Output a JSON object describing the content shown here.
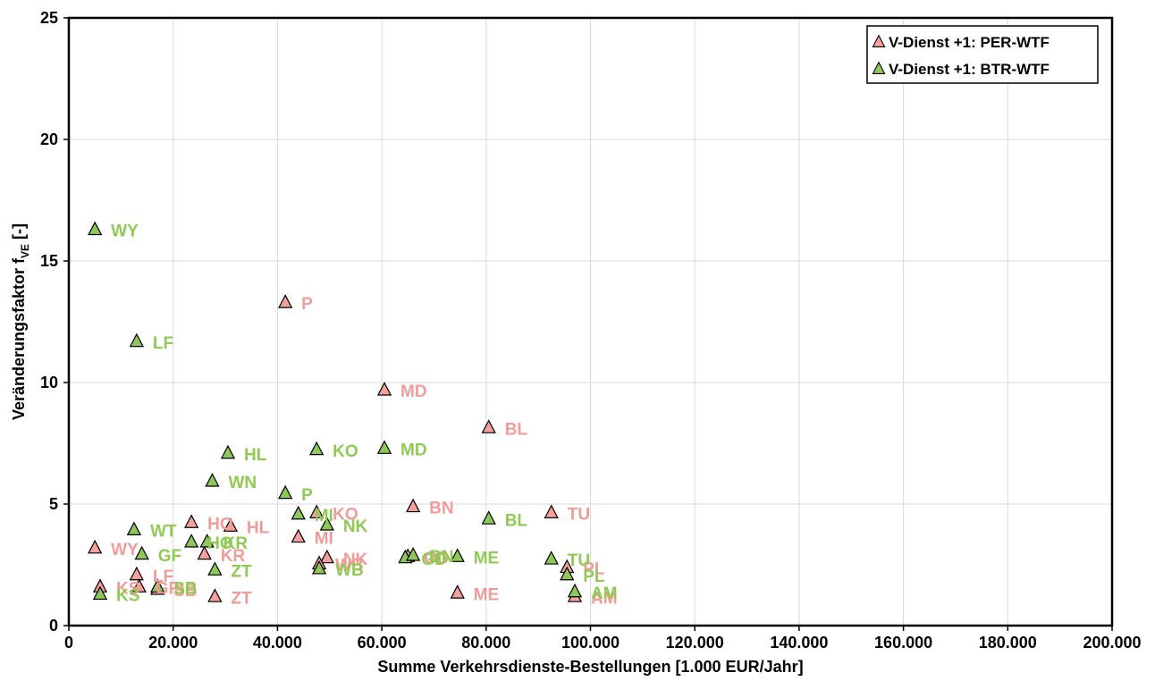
{
  "chart_data": {
    "type": "scatter",
    "xlabel": "Summe Verkehrsdienste-Bestellungen [1.000 EUR/Jahr]",
    "ylabel_main": "Veränderungsfaktor f",
    "ylabel_sub": "VE",
    "ylabel_tail": " [-]",
    "xlim": [
      0,
      200000
    ],
    "ylim": [
      0,
      25
    ],
    "x_ticks": [
      "0",
      "20.000",
      "40.000",
      "60.000",
      "80.000",
      "100.000",
      "120.000",
      "140.000",
      "160.000",
      "180.000",
      "200.000"
    ],
    "y_ticks": [
      "0",
      "5",
      "10",
      "15",
      "20",
      "25"
    ],
    "grid": true,
    "legend_position": "top-right",
    "series": [
      {
        "name": "V-Dienst +1: PER-WTF",
        "color": "#f4a09c",
        "label_color": "#f09c99",
        "points": [
          {
            "label": "WY",
            "x": 5000,
            "y": 3.2
          },
          {
            "label": "KS",
            "x": 6000,
            "y": 1.6
          },
          {
            "label": "LF",
            "x": 13000,
            "y": 2.1
          },
          {
            "label": "GF",
            "x": 13500,
            "y": 1.6
          },
          {
            "label": "SB",
            "x": 17000,
            "y": 1.5
          },
          {
            "label": "HO",
            "x": 23500,
            "y": 4.25
          },
          {
            "label": "KR",
            "x": 26000,
            "y": 2.95
          },
          {
            "label": "HL",
            "x": 31000,
            "y": 4.1
          },
          {
            "label": "ZT",
            "x": 28000,
            "y": 1.2
          },
          {
            "label": "P",
            "x": 41500,
            "y": 13.3
          },
          {
            "label": "MI",
            "x": 44000,
            "y": 3.65
          },
          {
            "label": "KO",
            "x": 47500,
            "y": 4.65
          },
          {
            "label": "NK",
            "x": 49500,
            "y": 2.8
          },
          {
            "label": "WB",
            "x": 48000,
            "y": 2.55
          },
          {
            "label": "MD",
            "x": 60500,
            "y": 9.7
          },
          {
            "label": "BN",
            "x": 66000,
            "y": 4.9
          },
          {
            "label": "GD",
            "x": 65000,
            "y": 2.85
          },
          {
            "label": "ME",
            "x": 74500,
            "y": 1.35
          },
          {
            "label": "BL",
            "x": 80500,
            "y": 8.15
          },
          {
            "label": "TU",
            "x": 92500,
            "y": 4.65
          },
          {
            "label": "PL",
            "x": 95500,
            "y": 2.4
          },
          {
            "label": "AM",
            "x": 97000,
            "y": 1.2
          }
        ]
      },
      {
        "name": "V-Dienst +1: BTR-WTF",
        "color": "#8fc75a",
        "label_color": "#8fca55",
        "points": [
          {
            "label": "WY",
            "x": 5000,
            "y": 16.3
          },
          {
            "label": "KS",
            "x": 6000,
            "y": 1.3
          },
          {
            "label": "LF",
            "x": 13000,
            "y": 11.7
          },
          {
            "label": "WT",
            "x": 12500,
            "y": 3.95
          },
          {
            "label": "GF",
            "x": 14000,
            "y": 2.95
          },
          {
            "label": "SB",
            "x": 17000,
            "y": 1.6
          },
          {
            "label": "HO",
            "x": 23500,
            "y": 3.45
          },
          {
            "label": "KR",
            "x": 26500,
            "y": 3.45
          },
          {
            "label": "ZT",
            "x": 28000,
            "y": 2.3
          },
          {
            "label": "WN",
            "x": 27500,
            "y": 5.95
          },
          {
            "label": "HL",
            "x": 30500,
            "y": 7.1
          },
          {
            "label": "P",
            "x": 41500,
            "y": 5.45
          },
          {
            "label": "MI",
            "x": 44000,
            "y": 4.6
          },
          {
            "label": "KO",
            "x": 47500,
            "y": 7.25
          },
          {
            "label": "NK",
            "x": 49500,
            "y": 4.15
          },
          {
            "label": "WB",
            "x": 48000,
            "y": 2.35
          },
          {
            "label": "MD",
            "x": 60500,
            "y": 7.3
          },
          {
            "label": "GD",
            "x": 64500,
            "y": 2.8
          },
          {
            "label": "BN",
            "x": 66000,
            "y": 2.9
          },
          {
            "label": "ME",
            "x": 74500,
            "y": 2.85
          },
          {
            "label": "BL",
            "x": 80500,
            "y": 4.4
          },
          {
            "label": "TU",
            "x": 92500,
            "y": 2.75
          },
          {
            "label": "PL",
            "x": 95500,
            "y": 2.1
          },
          {
            "label": "AM",
            "x": 97000,
            "y": 1.4
          }
        ]
      }
    ]
  }
}
